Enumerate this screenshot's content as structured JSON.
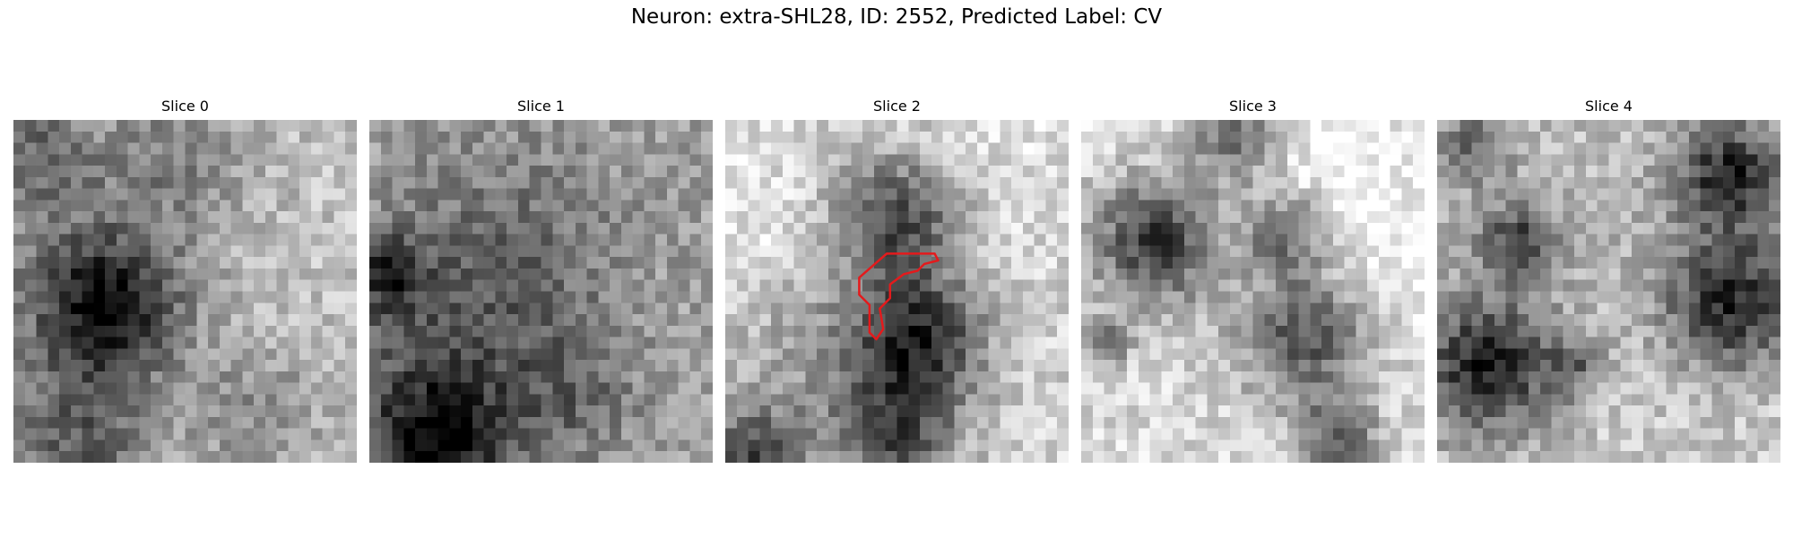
{
  "figure": {
    "title": "Neuron: extra-SHL28, ID: 2552, Predicted Label: CV"
  },
  "panels": [
    {
      "title": "Slice 0",
      "seed": 11,
      "blobs": [
        [
          0.28,
          0.55,
          0.14,
          0.62
        ],
        [
          0.05,
          0.08,
          0.12,
          0.25
        ],
        [
          0.5,
          0.1,
          0.15,
          0.2
        ],
        [
          0.72,
          0.85,
          0.14,
          0.25
        ],
        [
          0.2,
          0.95,
          0.15,
          0.3
        ]
      ],
      "base": 0.76
    },
    {
      "title": "Slice 1",
      "seed": 23,
      "blobs": [
        [
          0.4,
          0.42,
          0.25,
          0.3
        ],
        [
          0.2,
          0.95,
          0.15,
          0.55
        ],
        [
          0.6,
          0.8,
          0.15,
          0.25
        ],
        [
          0.05,
          0.45,
          0.08,
          0.4
        ]
      ],
      "base": 0.62
    },
    {
      "title": "Slice 2",
      "seed": 37,
      "blobs": [
        [
          0.5,
          0.28,
          0.13,
          0.55
        ],
        [
          0.57,
          0.64,
          0.13,
          0.6
        ],
        [
          0.5,
          0.92,
          0.12,
          0.45
        ],
        [
          0.08,
          0.98,
          0.1,
          0.5
        ]
      ],
      "base": 0.82
    },
    {
      "title": "Slice 3",
      "seed": 51,
      "blobs": [
        [
          0.22,
          0.35,
          0.13,
          0.65
        ],
        [
          0.6,
          0.33,
          0.09,
          0.5
        ],
        [
          0.65,
          0.63,
          0.13,
          0.55
        ],
        [
          0.45,
          0.05,
          0.1,
          0.5
        ],
        [
          0.75,
          0.93,
          0.08,
          0.5
        ],
        [
          0.07,
          0.65,
          0.05,
          0.4
        ]
      ],
      "base": 0.84
    },
    {
      "title": "Slice 4",
      "seed": 67,
      "blobs": [
        [
          0.15,
          0.72,
          0.14,
          0.6
        ],
        [
          0.85,
          0.55,
          0.13,
          0.55
        ],
        [
          0.85,
          0.15,
          0.1,
          0.5
        ],
        [
          0.24,
          0.35,
          0.08,
          0.45
        ],
        [
          0.1,
          0.08,
          0.08,
          0.35
        ],
        [
          0.4,
          0.72,
          0.06,
          0.3
        ]
      ],
      "base": 0.8
    }
  ],
  "overlay": {
    "panel_index": 2,
    "color": "#e41a1c",
    "contour": [
      [
        0.47,
        0.39
      ],
      [
        0.61,
        0.39
      ],
      [
        0.62,
        0.41
      ],
      [
        0.58,
        0.42
      ],
      [
        0.56,
        0.44
      ],
      [
        0.52,
        0.45
      ],
      [
        0.48,
        0.48
      ],
      [
        0.48,
        0.52
      ],
      [
        0.45,
        0.55
      ],
      [
        0.46,
        0.61
      ],
      [
        0.44,
        0.64
      ],
      [
        0.42,
        0.62
      ],
      [
        0.42,
        0.54
      ],
      [
        0.39,
        0.51
      ],
      [
        0.39,
        0.46
      ]
    ]
  },
  "colors": {
    "background": "#ffffff",
    "colormap": "gray",
    "contour": "#e41a1c"
  }
}
